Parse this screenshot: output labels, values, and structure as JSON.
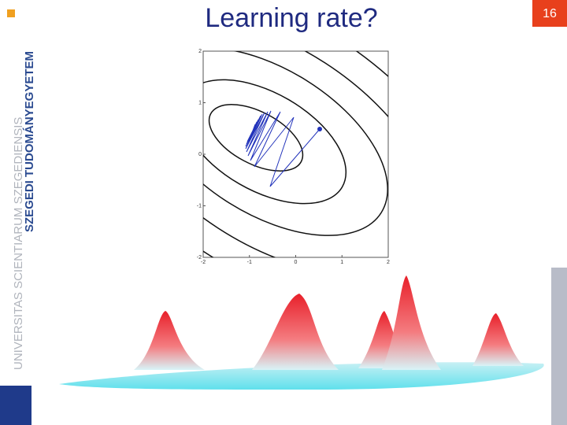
{
  "slide": {
    "title": "Learning rate?",
    "number": "16",
    "logo_text": [
      "UNIVERSITAS SCIENTIARUM SZEGEDIENSIS",
      "SZEGEDI TUDOMÁNYEGYETEM"
    ]
  },
  "plot": {
    "xlim": [
      -2,
      2
    ],
    "ylim": [
      -2,
      2
    ],
    "xticks": [
      -2,
      -1,
      0,
      1,
      2
    ],
    "yticks": [
      -2,
      -1,
      0,
      1,
      2
    ]
  }
}
